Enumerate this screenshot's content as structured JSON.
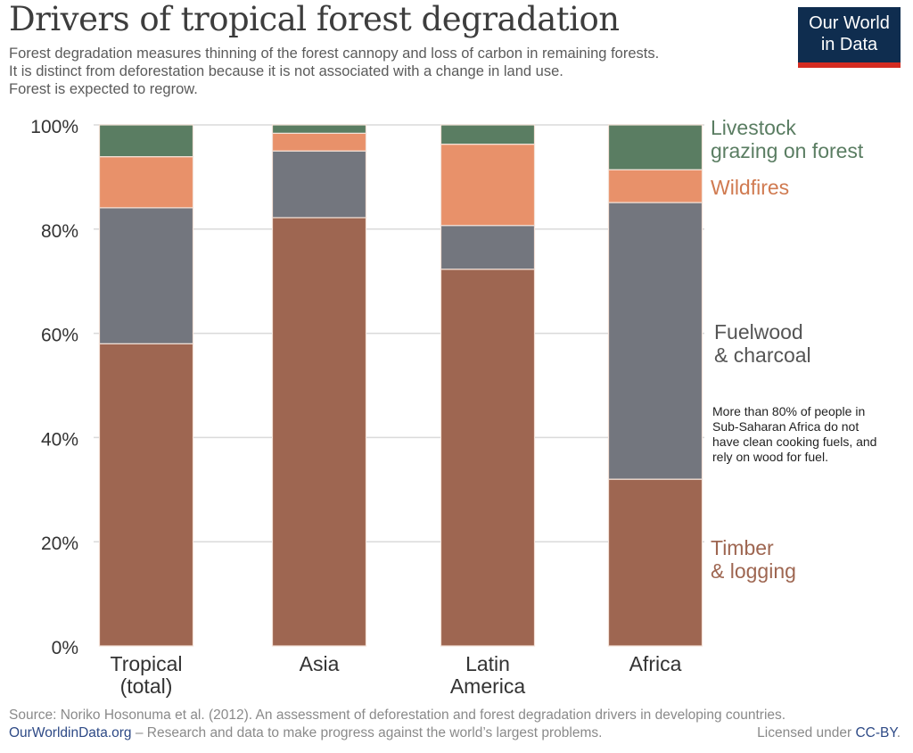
{
  "header": {
    "title": "Drivers of tropical forest degradation",
    "subtitle": [
      "Forest degradation measures thinning of the forest cannopy and loss of carbon in remaining forests.",
      "It is distinct from deforestation because it is not associated with a change in land use.",
      "Forest is expected to regrow."
    ],
    "logo": [
      "Our World",
      "in Data"
    ]
  },
  "chart_data": {
    "type": "bar",
    "stacked": true,
    "categories": [
      [
        "Tropical",
        "(total)"
      ],
      [
        "Asia"
      ],
      [
        "Latin",
        "America"
      ],
      [
        "Africa"
      ]
    ],
    "series": [
      {
        "name": "Timber & logging",
        "label_lines": [
          "Timber",
          "& logging"
        ],
        "color": "#9e6651",
        "label_color": "#9e6651",
        "values": [
          58,
          82.2,
          72.3,
          32
        ]
      },
      {
        "name": "Fuelwood & charcoal",
        "label_lines": [
          "Fuelwood",
          "& charcoal"
        ],
        "color": "#73767e",
        "label_color": "#555555",
        "values": [
          26.1,
          12.8,
          8.4,
          53.1
        ]
      },
      {
        "name": "Wildfires",
        "label_lines": [
          "Wildfires"
        ],
        "color": "#e8916a",
        "label_color": "#d07a50",
        "values": [
          9.8,
          3.4,
          15.6,
          6.3
        ]
      },
      {
        "name": "Livestock grazing on forest",
        "label_lines": [
          "Livestock",
          "grazing on forest"
        ],
        "color": "#5a7d62",
        "label_color": "#5a7d62",
        "values": [
          6.1,
          1.6,
          3.7,
          8.6
        ]
      }
    ],
    "ylim": [
      0,
      100
    ],
    "yticks": [
      "0%",
      "20%",
      "40%",
      "60%",
      "80%",
      "100%"
    ],
    "grid": true,
    "legend": "right, inline labels",
    "annotation": [
      "More than 80% of people in",
      "Sub-Saharan Africa do not",
      "have clean cooking fuels, and",
      "rely on wood for fuel."
    ]
  },
  "footer": {
    "source": "Source: Noriko Hosonuma et al. (2012). An assessment of deforestation and forest degradation drivers in developing countries.",
    "site": "OurWorldinData.org",
    "tagline": " – Research and data to make progress against the world’s largest problems.",
    "license_prefix": "Licensed under ",
    "license": "CC-BY",
    "license_suffix": "."
  }
}
